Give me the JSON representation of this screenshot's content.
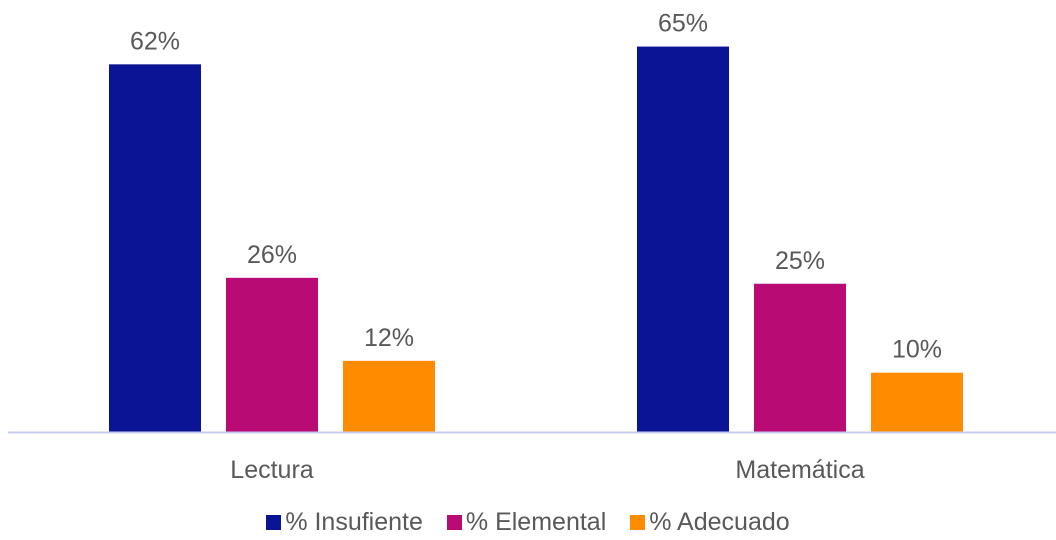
{
  "chart_data": {
    "type": "bar",
    "categories": [
      "Lectura",
      "Matemática"
    ],
    "series": [
      {
        "name": "% Insufiente",
        "values": [
          62,
          65
        ],
        "labels": [
          "62%",
          "65%"
        ],
        "color": "#0A1494"
      },
      {
        "name": "% Elemental",
        "values": [
          26,
          25
        ],
        "labels": [
          "26%",
          "25%"
        ],
        "color": "#B80C74"
      },
      {
        "name": "% Adecuado",
        "values": [
          12,
          10
        ],
        "labels": [
          "12%",
          "10%"
        ],
        "color": "#FF8C00"
      }
    ],
    "title": "",
    "xlabel": "",
    "ylabel": "",
    "ylim": [
      0,
      70
    ],
    "grid": false,
    "legend_position": "bottom",
    "axis_color": "#C9CCF2",
    "text_color": "#595959"
  }
}
